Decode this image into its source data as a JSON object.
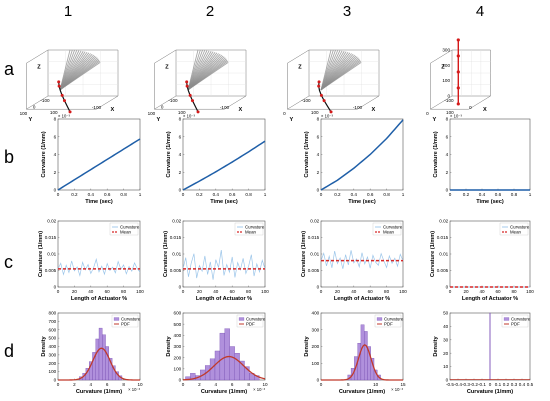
{
  "columns": [
    "1",
    "2",
    "3",
    "4"
  ],
  "rows": [
    "a",
    "b",
    "c",
    "d"
  ],
  "colors": {
    "curve_blue": "#1f5fa8",
    "light_blue": "#9cc6ea",
    "mean_red": "#d62828",
    "hist_fill": "#b090dc",
    "hist_edge": "#6a3fa8",
    "pdf_red": "#c0392b",
    "backbone": "#d41a1a",
    "surface_gray": "#8c8c8c"
  },
  "chart_data": [
    {
      "panel": "a",
      "type": "line3d",
      "axes": {
        "xlabel": "X",
        "ylabel": "Y",
        "zlabel": "Z"
      },
      "columns": [
        {
          "xticks": [
            "100",
            "-100"
          ],
          "yticks": [
            "-100",
            "0",
            "100"
          ],
          "zticks": [],
          "bend": 1.0
        },
        {
          "xticks": [
            "100",
            "-100"
          ],
          "yticks": [
            "-100",
            "0",
            "100"
          ],
          "zticks": [],
          "bend": 1.0
        },
        {
          "xticks": [
            "100",
            "-100"
          ],
          "yticks": [
            "-100",
            "0"
          ],
          "zticks": [],
          "bend": 1.2
        },
        {
          "xticks": [
            "100",
            "0"
          ],
          "yticks": [
            "-100",
            "0"
          ],
          "zticks": [
            "300",
            "200",
            "100",
            "0"
          ],
          "bend": 0.0
        }
      ]
    },
    {
      "panel": "b",
      "type": "line",
      "xlabel": "Time (sec)",
      "ylabel": "Curvature (1/mm)",
      "xlim": [
        0,
        1
      ],
      "ylim": [
        0,
        8
      ],
      "xticks": [
        "0",
        "0.2",
        "0.4",
        "0.6",
        "0.8",
        "1"
      ],
      "yticks": [
        "0",
        "2",
        "4",
        "6",
        "8"
      ],
      "multiplier": "× 10⁻³",
      "columns": [
        {
          "x": [
            0,
            0.2,
            0.4,
            0.6,
            0.8,
            1.0
          ],
          "y": [
            0,
            1.15,
            2.3,
            3.45,
            4.6,
            5.75
          ]
        },
        {
          "x": [
            0,
            0.2,
            0.4,
            0.6,
            0.8,
            1.0
          ],
          "y": [
            0,
            1.0,
            2.05,
            3.15,
            4.3,
            5.5
          ]
        },
        {
          "x": [
            0,
            0.2,
            0.4,
            0.6,
            0.8,
            1.0
          ],
          "y": [
            0,
            1.1,
            2.45,
            4.0,
            5.8,
            7.9
          ]
        },
        {
          "x": [
            0,
            1.0
          ],
          "y": [
            0,
            0
          ]
        }
      ]
    },
    {
      "panel": "c",
      "type": "line",
      "xlabel": "Length of Actuator %",
      "ylabel": "Curvature (1/mm)",
      "xlim": [
        0,
        100
      ],
      "ylim": [
        0,
        0.02
      ],
      "xticks": [
        "0",
        "20",
        "40",
        "60",
        "80",
        "100"
      ],
      "yticks": [
        "0",
        "0.005",
        "0.01",
        "0.015",
        "0.02"
      ],
      "legend": [
        "Curvature",
        "Mean"
      ],
      "columns": [
        {
          "mean": 0.0055,
          "values": [
            0.0055,
            0.0072,
            0.0038,
            0.0066,
            0.0044,
            0.0079,
            0.0049,
            0.0061,
            0.0035,
            0.0075,
            0.0052,
            0.0068,
            0.0041,
            0.0058,
            0.0084,
            0.0046,
            0.0063,
            0.0039,
            0.0071,
            0.005,
            0.006,
            0.0043,
            0.0077,
            0.0054,
            0.0067,
            0.004,
            0.0062,
            0.0048,
            0.0073,
            0.0056,
            0.0045
          ]
        },
        {
          "mean": 0.0055,
          "values": [
            0.0055,
            0.0089,
            0.0031,
            0.0072,
            0.0101,
            0.0027,
            0.0065,
            0.0048,
            0.0094,
            0.0038,
            0.0076,
            0.0022,
            0.0083,
            0.0059,
            0.0112,
            0.0035,
            0.0068,
            0.0045,
            0.0091,
            0.0029,
            0.0074,
            0.0052,
            0.0087,
            0.0041,
            0.0063,
            0.0098,
            0.0033,
            0.007,
            0.0046,
            0.0081,
            0.0055
          ]
        },
        {
          "mean": 0.008,
          "values": [
            0.008,
            0.0102,
            0.0064,
            0.0093,
            0.0058,
            0.0109,
            0.0071,
            0.0088,
            0.0055,
            0.0098,
            0.0067,
            0.0111,
            0.0073,
            0.0085,
            0.0061,
            0.0104,
            0.007,
            0.0091,
            0.0057,
            0.0096,
            0.0075,
            0.0066,
            0.0101,
            0.0079,
            0.0059,
            0.0094,
            0.0072,
            0.0087,
            0.0063,
            0.0099,
            0.008
          ]
        },
        {
          "mean": 0.0,
          "values": [
            0,
            0,
            0,
            0,
            0,
            0,
            0,
            0,
            0,
            0,
            0,
            0,
            0,
            0,
            0,
            0,
            0,
            0,
            0,
            0,
            0,
            0,
            0,
            0,
            0,
            0,
            0,
            0,
            0,
            0,
            0
          ]
        }
      ]
    },
    {
      "panel": "d",
      "type": "histogram",
      "xlabel": "Curvature (1/mm)",
      "ylabel": "Density",
      "legend": [
        "Curvature",
        "PDF"
      ],
      "columns": [
        {
          "xlim": [
            0,
            10
          ],
          "ylim": [
            0,
            800
          ],
          "xticks": [
            "0",
            "2",
            "4",
            "6",
            "8",
            "10"
          ],
          "yticks": [
            "0",
            "100",
            "200",
            "300",
            "400",
            "500",
            "600",
            "700",
            "800"
          ],
          "multiplier": "× 10⁻³",
          "pdf": {
            "mu": 5.3,
            "sigma": 1.05,
            "peak": 380
          },
          "bins": [
            {
              "x": 2.8,
              "h": 40
            },
            {
              "x": 3.2,
              "h": 80
            },
            {
              "x": 3.6,
              "h": 140
            },
            {
              "x": 4.0,
              "h": 220
            },
            {
              "x": 4.4,
              "h": 330
            },
            {
              "x": 4.8,
              "h": 490
            },
            {
              "x": 5.2,
              "h": 620
            },
            {
              "x": 5.6,
              "h": 540
            },
            {
              "x": 6.0,
              "h": 400
            },
            {
              "x": 6.4,
              "h": 260
            },
            {
              "x": 6.8,
              "h": 170
            },
            {
              "x": 7.2,
              "h": 100
            },
            {
              "x": 7.6,
              "h": 50
            }
          ]
        },
        {
          "xlim": [
            0,
            10
          ],
          "ylim": [
            0,
            600
          ],
          "xticks": [
            "0",
            "2",
            "4",
            "6",
            "8",
            "10"
          ],
          "yticks": [
            "0",
            "100",
            "200",
            "300",
            "400",
            "500",
            "600"
          ],
          "multiplier": "× 10⁻³",
          "pdf": {
            "mu": 5.6,
            "sigma": 1.8,
            "peak": 210
          },
          "bins": [
            {
              "x": 0.6,
              "h": 30
            },
            {
              "x": 1.2,
              "h": 60
            },
            {
              "x": 1.8,
              "h": 40
            },
            {
              "x": 2.4,
              "h": 90
            },
            {
              "x": 3.0,
              "h": 130
            },
            {
              "x": 3.6,
              "h": 190
            },
            {
              "x": 4.2,
              "h": 260
            },
            {
              "x": 4.8,
              "h": 420
            },
            {
              "x": 5.4,
              "h": 460
            },
            {
              "x": 6.0,
              "h": 300
            },
            {
              "x": 6.6,
              "h": 240
            },
            {
              "x": 7.2,
              "h": 170
            },
            {
              "x": 7.8,
              "h": 120
            },
            {
              "x": 8.4,
              "h": 60
            },
            {
              "x": 9.0,
              "h": 40
            }
          ]
        },
        {
          "xlim": [
            0,
            15
          ],
          "ylim": [
            0,
            400
          ],
          "xticks": [
            "0",
            "5",
            "10",
            "15"
          ],
          "yticks": [
            "0",
            "100",
            "200",
            "300",
            "400"
          ],
          "multiplier": "× 10⁻³",
          "pdf": {
            "mu": 8.0,
            "sigma": 1.15,
            "peak": 210
          },
          "bins": [
            {
              "x": 5.2,
              "h": 30
            },
            {
              "x": 5.8,
              "h": 70
            },
            {
              "x": 6.4,
              "h": 140
            },
            {
              "x": 7.0,
              "h": 220
            },
            {
              "x": 7.6,
              "h": 330
            },
            {
              "x": 8.2,
              "h": 290
            },
            {
              "x": 8.8,
              "h": 200
            },
            {
              "x": 9.4,
              "h": 130
            },
            {
              "x": 10.0,
              "h": 60
            },
            {
              "x": 10.6,
              "h": 30
            }
          ]
        },
        {
          "xlim": [
            -0.5,
            0.5
          ],
          "ylim": [
            0,
            50
          ],
          "xticks": [
            "-0.5",
            "-0.4",
            "-0.3",
            "-0.2",
            "-0.1",
            "0",
            "0.1",
            "0.2",
            "0.3",
            "0.4",
            "0.5"
          ],
          "yticks": [
            "0",
            "10",
            "20",
            "30",
            "40",
            "50"
          ],
          "multiplier": "",
          "pdf": {
            "mu": 0,
            "sigma": 0,
            "peak": 0
          },
          "bins": [
            {
              "x": 0.0,
              "h": 50
            }
          ]
        }
      ]
    }
  ]
}
